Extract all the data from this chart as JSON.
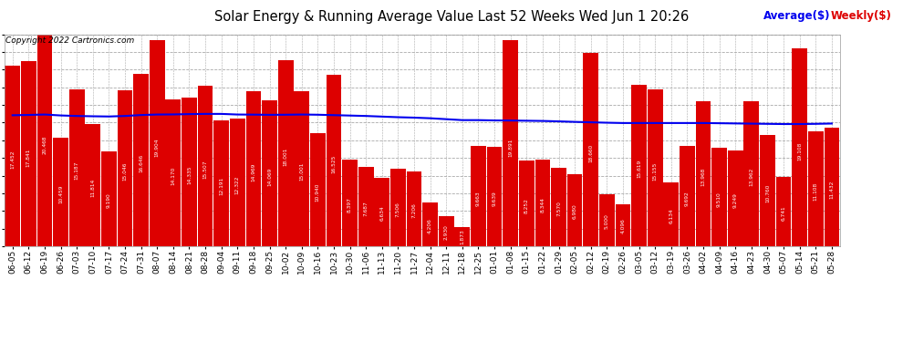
{
  "title": "Solar Energy & Running Average Value Last 52 Weeks Wed Jun 1 20:26",
  "copyright": "Copyright 2022 Cartronics.com",
  "legend_avg": "Average($)",
  "legend_weekly": "Weekly($)",
  "bar_color": "#dd0000",
  "avg_line_color": "#0000ee",
  "background_color": "#ffffff",
  "xlabels": [
    "06-05",
    "06-12",
    "06-19",
    "06-26",
    "07-03",
    "07-10",
    "07-17",
    "07-24",
    "07-31",
    "08-07",
    "08-14",
    "08-21",
    "08-28",
    "09-04",
    "09-11",
    "09-18",
    "09-25",
    "10-02",
    "10-09",
    "10-16",
    "10-23",
    "10-30",
    "11-06",
    "11-13",
    "11-20",
    "11-27",
    "12-04",
    "12-11",
    "12-18",
    "12-25",
    "01-01",
    "01-08",
    "01-15",
    "01-22",
    "01-29",
    "02-05",
    "02-12",
    "02-19",
    "02-26",
    "03-05",
    "03-12",
    "03-19",
    "03-26",
    "04-02",
    "04-09",
    "04-16",
    "04-23",
    "04-30",
    "05-07",
    "05-14",
    "05-21",
    "05-28"
  ],
  "weekly_values": [
    17.452,
    17.841,
    20.468,
    10.459,
    15.187,
    11.814,
    9.19,
    15.046,
    16.646,
    19.904,
    14.17,
    14.335,
    15.507,
    12.191,
    12.322,
    14.969,
    14.069,
    18.001,
    15.001,
    10.94,
    16.525,
    8.397,
    7.687,
    6.634,
    7.506,
    7.206,
    4.206,
    2.93,
    1.873,
    9.663,
    9.639,
    19.891,
    8.252,
    8.344,
    7.57,
    6.98,
    18.66,
    5.0,
    4.096,
    15.619,
    15.155,
    6.134,
    9.692,
    13.968,
    9.51,
    9.249,
    13.962,
    10.76,
    6.741,
    19.108,
    11.108,
    11.432
  ],
  "avg_values": [
    12.65,
    12.68,
    12.72,
    12.63,
    12.58,
    12.55,
    12.53,
    12.58,
    12.67,
    12.72,
    12.73,
    12.76,
    12.78,
    12.78,
    12.72,
    12.71,
    12.69,
    12.7,
    12.72,
    12.7,
    12.66,
    12.62,
    12.58,
    12.52,
    12.46,
    12.42,
    12.36,
    12.27,
    12.18,
    12.18,
    12.15,
    12.14,
    12.12,
    12.1,
    12.06,
    12.01,
    11.97,
    11.93,
    11.9,
    11.9,
    11.9,
    11.9,
    11.9,
    11.9,
    11.88,
    11.86,
    11.84,
    11.82,
    11.8,
    11.8,
    11.82,
    11.85
  ],
  "yticks": [
    0.01,
    1.72,
    3.42,
    5.13,
    6.83,
    8.54,
    10.24,
    11.95,
    13.65,
    15.35,
    17.06,
    18.76,
    20.47
  ],
  "ylim": [
    0.01,
    20.47
  ],
  "grid_color": "#aaaaaa"
}
